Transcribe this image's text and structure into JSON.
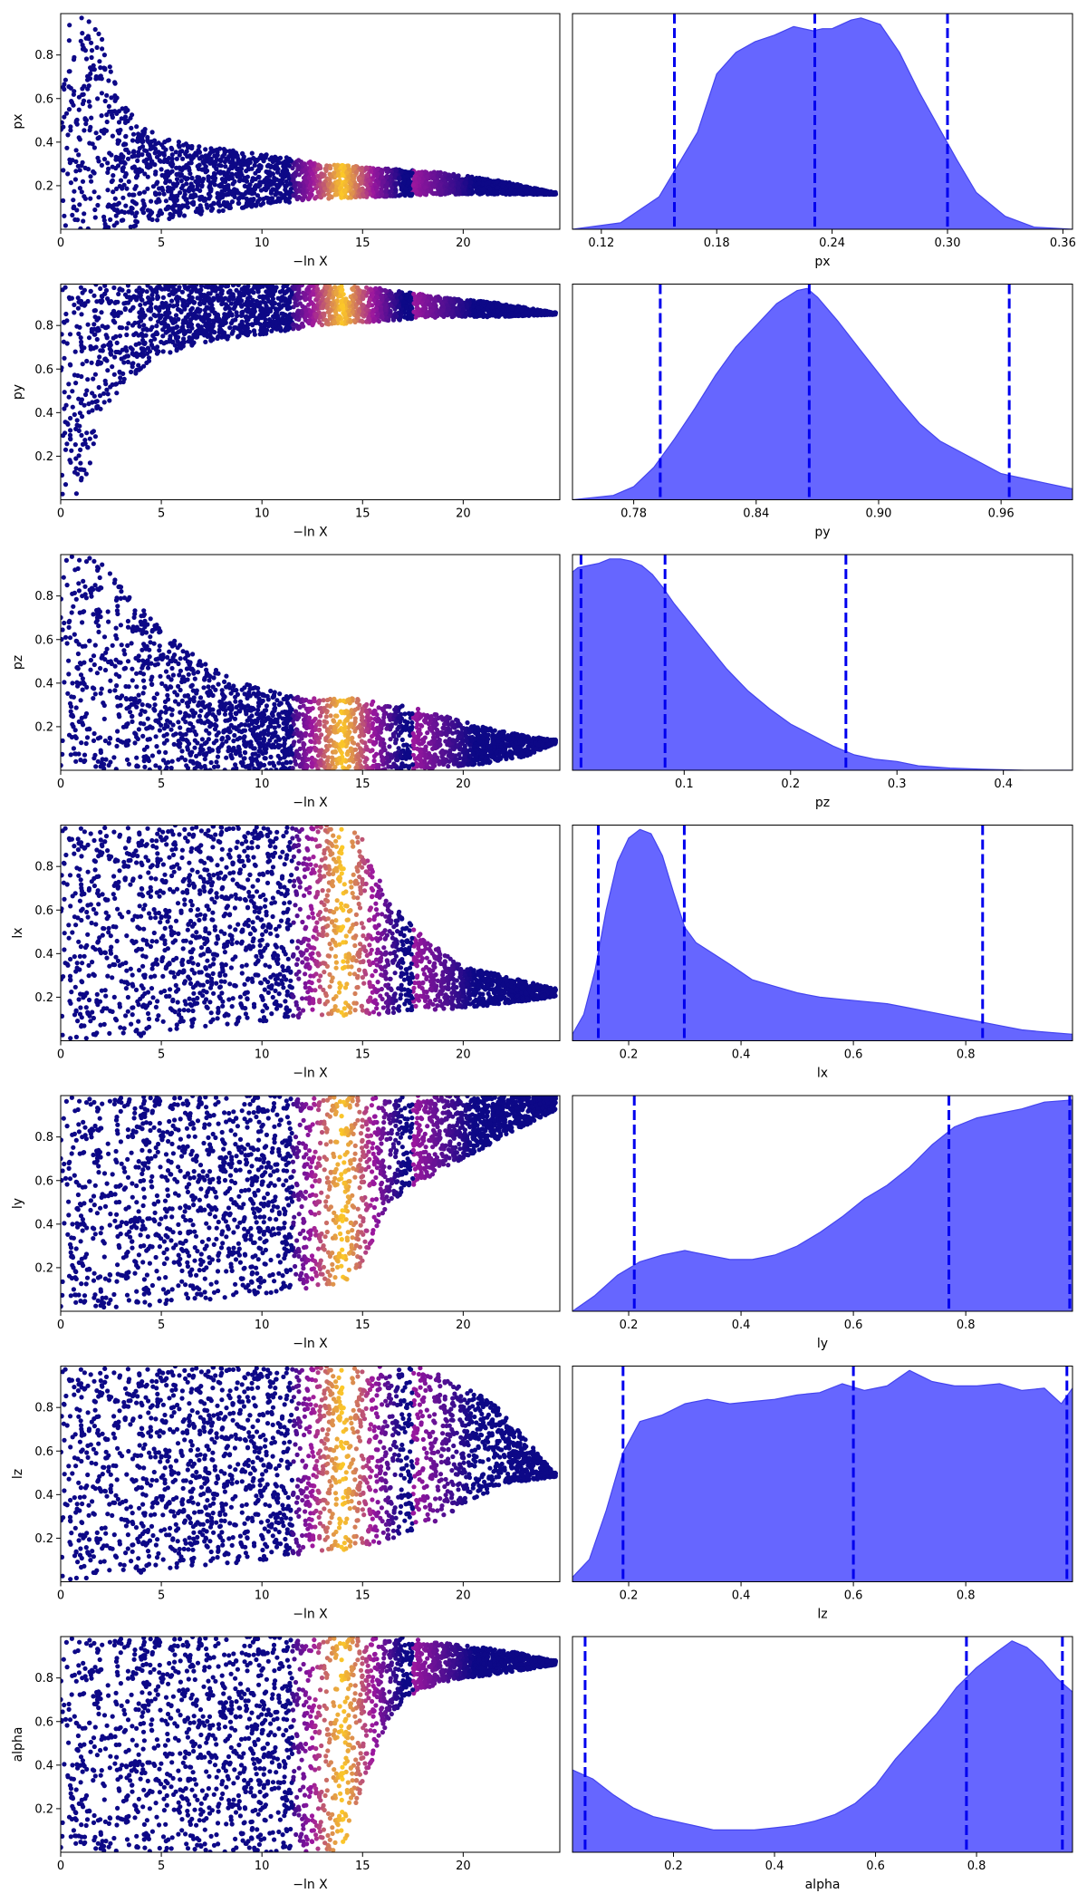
{
  "colors": {
    "trace_low": "#0d0887",
    "trace_mid": "#9c179e",
    "trace_high": "#fdca26",
    "posterior_fill": "#6666ff",
    "posterior_edge": "#4444ee",
    "quantile_line": "#0000ee"
  },
  "chart_data": [
    {
      "type": "scatter",
      "param": "px",
      "xlabel": "−ln X",
      "ylabel": "px",
      "xlim": [
        0,
        24.8
      ],
      "ylim": [
        0,
        0.99
      ],
      "xticks": [
        0,
        5,
        10,
        15,
        20
      ],
      "yticks": [
        0.2,
        0.4,
        0.6,
        0.8
      ],
      "envelope": {
        "x": [
          0,
          1,
          2,
          3,
          4,
          5,
          7,
          10,
          13,
          16,
          19,
          22,
          24.5
        ],
        "lo": [
          0,
          0,
          0,
          0,
          0.02,
          0.04,
          0.07,
          0.11,
          0.14,
          0.15,
          0.16,
          0.16,
          0.16
        ],
        "hi": [
          0.99,
          0.99,
          0.9,
          0.6,
          0.48,
          0.42,
          0.38,
          0.35,
          0.3,
          0.28,
          0.26,
          0.22,
          0.17
        ]
      },
      "bright_band": [
        11.5,
        17.5
      ],
      "peak": 14
    },
    {
      "type": "area",
      "param": "px",
      "xlabel": "px",
      "xlim": [
        0.105,
        0.365
      ],
      "xticks": [
        0.12,
        0.18,
        0.24,
        0.3,
        0.36
      ],
      "tick_labels": [
        "0.12",
        "0.18",
        "0.24",
        "0.30",
        "0.36"
      ],
      "quantiles": [
        0.158,
        0.231,
        0.3
      ],
      "x": [
        0.105,
        0.13,
        0.15,
        0.17,
        0.18,
        0.19,
        0.2,
        0.21,
        0.22,
        0.23,
        0.235,
        0.24,
        0.25,
        0.255,
        0.265,
        0.275,
        0.285,
        0.295,
        0.305,
        0.315,
        0.33,
        0.345,
        0.365
      ],
      "y": [
        0,
        0.03,
        0.15,
        0.45,
        0.72,
        0.82,
        0.87,
        0.9,
        0.94,
        0.92,
        0.93,
        0.93,
        0.97,
        0.98,
        0.95,
        0.82,
        0.64,
        0.48,
        0.32,
        0.17,
        0.06,
        0.01,
        0
      ]
    },
    {
      "type": "scatter",
      "param": "py",
      "xlabel": "−ln X",
      "ylabel": "py",
      "xlim": [
        0,
        24.8
      ],
      "ylim": [
        0,
        0.99
      ],
      "xticks": [
        0,
        5,
        10,
        15,
        20
      ],
      "yticks": [
        0.2,
        0.4,
        0.6,
        0.8
      ],
      "envelope": {
        "x": [
          0,
          0.5,
          1,
          1.5,
          2,
          3,
          4,
          5,
          7,
          10,
          13,
          16,
          19,
          22,
          24.5
        ],
        "lo": [
          0,
          0,
          0.02,
          0.18,
          0.38,
          0.52,
          0.6,
          0.66,
          0.72,
          0.76,
          0.8,
          0.82,
          0.84,
          0.84,
          0.85
        ],
        "hi": [
          0.99,
          0.99,
          0.99,
          0.99,
          0.99,
          0.99,
          0.99,
          0.99,
          0.99,
          0.99,
          0.99,
          0.97,
          0.93,
          0.9,
          0.86
        ]
      },
      "bright_band": [
        11.5,
        17.5
      ],
      "peak": 14
    },
    {
      "type": "area",
      "param": "py",
      "xlabel": "py",
      "xlim": [
        0.75,
        0.995
      ],
      "xticks": [
        0.78,
        0.84,
        0.9,
        0.96
      ],
      "tick_labels": [
        "0.78",
        "0.84",
        "0.90",
        "0.96"
      ],
      "quantiles": [
        0.793,
        0.866,
        0.964
      ],
      "x": [
        0.75,
        0.77,
        0.78,
        0.79,
        0.8,
        0.81,
        0.82,
        0.83,
        0.84,
        0.85,
        0.86,
        0.865,
        0.87,
        0.88,
        0.89,
        0.9,
        0.91,
        0.92,
        0.93,
        0.94,
        0.95,
        0.96,
        0.97,
        0.98,
        0.995
      ],
      "y": [
        0,
        0.02,
        0.06,
        0.15,
        0.28,
        0.42,
        0.57,
        0.7,
        0.8,
        0.9,
        0.96,
        0.97,
        0.93,
        0.82,
        0.7,
        0.58,
        0.46,
        0.35,
        0.27,
        0.22,
        0.17,
        0.12,
        0.1,
        0.08,
        0.05
      ]
    },
    {
      "type": "scatter",
      "param": "pz",
      "xlabel": "−ln X",
      "ylabel": "pz",
      "xlim": [
        0,
        24.8
      ],
      "ylim": [
        0,
        0.99
      ],
      "xticks": [
        0,
        5,
        10,
        15,
        20
      ],
      "yticks": [
        0.2,
        0.4,
        0.6,
        0.8
      ],
      "envelope": {
        "x": [
          0,
          1,
          2,
          3,
          5,
          7,
          9,
          11,
          13,
          15,
          17,
          19,
          21,
          23,
          24.5
        ],
        "lo": [
          0,
          0,
          0,
          0,
          0,
          0,
          0,
          0,
          0,
          0,
          0,
          0.01,
          0.03,
          0.06,
          0.12
        ],
        "hi": [
          0.99,
          0.99,
          0.99,
          0.85,
          0.65,
          0.5,
          0.4,
          0.35,
          0.33,
          0.33,
          0.3,
          0.25,
          0.2,
          0.16,
          0.14
        ]
      },
      "bright_band": [
        11.5,
        17.5
      ],
      "peak": 14
    },
    {
      "type": "area",
      "param": "pz",
      "xlabel": "pz",
      "xlim": [
        -0.005,
        0.465
      ],
      "xticks": [
        0.1,
        0.2,
        0.3,
        0.4
      ],
      "tick_labels": [
        "0.1",
        "0.2",
        "0.3",
        "0.4"
      ],
      "quantiles": [
        0.003,
        0.082,
        0.252
      ],
      "x": [
        -0.005,
        0.0,
        0.01,
        0.02,
        0.03,
        0.04,
        0.05,
        0.06,
        0.07,
        0.08,
        0.09,
        0.1,
        0.12,
        0.14,
        0.16,
        0.18,
        0.2,
        0.22,
        0.24,
        0.26,
        0.28,
        0.3,
        0.32,
        0.35,
        0.38,
        0.42,
        0.465
      ],
      "y": [
        0.9,
        0.92,
        0.93,
        0.94,
        0.96,
        0.96,
        0.95,
        0.93,
        0.89,
        0.83,
        0.76,
        0.7,
        0.58,
        0.46,
        0.36,
        0.28,
        0.21,
        0.16,
        0.11,
        0.07,
        0.05,
        0.04,
        0.02,
        0.01,
        0.005,
        0,
        0
      ]
    },
    {
      "type": "scatter",
      "param": "lx",
      "xlabel": "−ln X",
      "ylabel": "lx",
      "xlim": [
        0,
        24.8
      ],
      "ylim": [
        0,
        0.99
      ],
      "xticks": [
        0,
        5,
        10,
        15,
        20
      ],
      "yticks": [
        0.2,
        0.4,
        0.6,
        0.8
      ],
      "envelope": {
        "x": [
          0,
          1,
          2,
          4,
          6,
          8,
          10,
          12,
          14,
          15,
          16,
          17,
          18,
          20,
          22,
          24.5
        ],
        "lo": [
          0,
          0,
          0,
          0.02,
          0.05,
          0.07,
          0.09,
          0.1,
          0.11,
          0.12,
          0.12,
          0.13,
          0.14,
          0.15,
          0.17,
          0.2
        ],
        "hi": [
          0.99,
          0.99,
          0.99,
          0.99,
          0.99,
          0.99,
          0.99,
          0.99,
          0.99,
          0.95,
          0.7,
          0.58,
          0.48,
          0.34,
          0.3,
          0.24
        ]
      },
      "bright_band": [
        11.5,
        17.5
      ],
      "peak": 14
    },
    {
      "type": "area",
      "param": "lx",
      "xlabel": "lx",
      "xlim": [
        0.1,
        0.99
      ],
      "xticks": [
        0.2,
        0.4,
        0.6,
        0.8
      ],
      "tick_labels": [
        "0.2",
        "0.4",
        "0.6",
        "0.8"
      ],
      "quantiles": [
        0.146,
        0.299,
        0.83
      ],
      "x": [
        0.1,
        0.12,
        0.14,
        0.16,
        0.18,
        0.2,
        0.22,
        0.24,
        0.26,
        0.28,
        0.3,
        0.32,
        0.35,
        0.38,
        0.42,
        0.46,
        0.5,
        0.54,
        0.58,
        0.62,
        0.66,
        0.7,
        0.74,
        0.78,
        0.82,
        0.86,
        0.9,
        0.94,
        0.99
      ],
      "y": [
        0.03,
        0.12,
        0.32,
        0.6,
        0.82,
        0.93,
        0.97,
        0.95,
        0.85,
        0.68,
        0.52,
        0.45,
        0.4,
        0.35,
        0.28,
        0.25,
        0.22,
        0.2,
        0.19,
        0.18,
        0.17,
        0.15,
        0.13,
        0.11,
        0.09,
        0.07,
        0.05,
        0.04,
        0.03
      ]
    },
    {
      "type": "scatter",
      "param": "ly",
      "xlabel": "−ln X",
      "ylabel": "ly",
      "xlim": [
        0,
        24.8
      ],
      "ylim": [
        0,
        0.99
      ],
      "xticks": [
        0,
        5,
        10,
        15,
        20
      ],
      "yticks": [
        0.2,
        0.4,
        0.6,
        0.8
      ],
      "envelope": {
        "x": [
          0,
          1,
          2,
          4,
          6,
          8,
          10,
          12,
          14,
          15,
          16,
          17,
          18,
          19,
          20,
          22,
          24.5
        ],
        "lo": [
          0,
          0,
          0.01,
          0.02,
          0.04,
          0.06,
          0.08,
          0.1,
          0.12,
          0.2,
          0.45,
          0.55,
          0.6,
          0.65,
          0.7,
          0.8,
          0.92
        ],
        "hi": [
          0.99,
          0.99,
          0.99,
          0.99,
          0.99,
          0.99,
          0.99,
          0.99,
          0.99,
          0.99,
          0.99,
          0.99,
          0.99,
          0.99,
          0.99,
          0.99,
          0.99
        ]
      },
      "bright_band": [
        11.5,
        17.5
      ],
      "peak": 14
    },
    {
      "type": "area",
      "param": "ly",
      "xlabel": "ly",
      "xlim": [
        0.1,
        0.99
      ],
      "xticks": [
        0.2,
        0.4,
        0.6,
        0.8
      ],
      "tick_labels": [
        "0.2",
        "0.4",
        "0.6",
        "0.8"
      ],
      "quantiles": [
        0.21,
        0.77,
        0.985
      ],
      "x": [
        0.1,
        0.14,
        0.18,
        0.22,
        0.26,
        0.3,
        0.34,
        0.38,
        0.42,
        0.46,
        0.5,
        0.54,
        0.58,
        0.62,
        0.66,
        0.7,
        0.74,
        0.78,
        0.82,
        0.86,
        0.9,
        0.94,
        0.99
      ],
      "y": [
        0,
        0.07,
        0.16,
        0.22,
        0.25,
        0.27,
        0.25,
        0.23,
        0.23,
        0.25,
        0.29,
        0.35,
        0.42,
        0.5,
        0.56,
        0.64,
        0.74,
        0.82,
        0.86,
        0.88,
        0.9,
        0.93,
        0.94
      ]
    },
    {
      "type": "scatter",
      "param": "lz",
      "xlabel": "−ln X",
      "ylabel": "lz",
      "xlim": [
        0,
        24.8
      ],
      "ylim": [
        0,
        0.99
      ],
      "xticks": [
        0,
        5,
        10,
        15,
        20
      ],
      "yticks": [
        0.2,
        0.4,
        0.6,
        0.8
      ],
      "envelope": {
        "x": [
          0,
          1,
          2,
          4,
          6,
          8,
          10,
          12,
          14,
          16,
          18,
          19,
          20,
          21,
          22,
          24.5
        ],
        "lo": [
          0,
          0,
          0.02,
          0.04,
          0.06,
          0.08,
          0.1,
          0.12,
          0.14,
          0.18,
          0.24,
          0.3,
          0.35,
          0.4,
          0.45,
          0.48
        ],
        "hi": [
          0.99,
          0.99,
          0.99,
          0.99,
          0.99,
          0.99,
          0.99,
          0.99,
          0.99,
          0.99,
          0.99,
          0.95,
          0.9,
          0.85,
          0.78,
          0.5
        ]
      },
      "bright_band": [
        11.5,
        17.5
      ],
      "peak": 14
    },
    {
      "type": "area",
      "param": "lz",
      "xlabel": "lz",
      "xlim": [
        0.1,
        0.99
      ],
      "xticks": [
        0.2,
        0.4,
        0.6,
        0.8
      ],
      "tick_labels": [
        "0.2",
        "0.4",
        "0.6",
        "0.8"
      ],
      "quantiles": [
        0.19,
        0.6,
        0.98
      ],
      "x": [
        0.1,
        0.13,
        0.16,
        0.19,
        0.22,
        0.26,
        0.3,
        0.34,
        0.38,
        0.42,
        0.46,
        0.5,
        0.54,
        0.58,
        0.62,
        0.66,
        0.7,
        0.74,
        0.78,
        0.82,
        0.86,
        0.9,
        0.94,
        0.97,
        0.99
      ],
      "y": [
        0.02,
        0.1,
        0.32,
        0.58,
        0.72,
        0.75,
        0.8,
        0.82,
        0.8,
        0.81,
        0.82,
        0.84,
        0.85,
        0.89,
        0.86,
        0.88,
        0.95,
        0.9,
        0.88,
        0.88,
        0.89,
        0.86,
        0.87,
        0.8,
        0.87
      ]
    },
    {
      "type": "scatter",
      "param": "alpha",
      "xlabel": "−ln X",
      "ylabel": "alpha",
      "xlim": [
        0,
        24.8
      ],
      "ylim": [
        0,
        0.99
      ],
      "xticks": [
        0,
        5,
        10,
        15,
        20
      ],
      "yticks": [
        0.2,
        0.4,
        0.6,
        0.8
      ],
      "envelope": {
        "x": [
          0,
          1,
          2,
          4,
          6,
          8,
          10,
          12,
          14,
          15,
          16,
          17,
          18,
          20,
          22,
          24.5
        ],
        "lo": [
          0,
          0,
          0,
          0,
          0,
          0,
          0,
          0,
          0,
          0.3,
          0.55,
          0.7,
          0.75,
          0.8,
          0.82,
          0.86
        ],
        "hi": [
          0.99,
          0.99,
          0.99,
          0.99,
          0.99,
          0.99,
          0.99,
          0.99,
          0.99,
          0.99,
          0.99,
          0.99,
          0.97,
          0.95,
          0.93,
          0.88
        ]
      },
      "bright_band": [
        11.5,
        17.5
      ],
      "peak": 14
    },
    {
      "type": "area",
      "param": "alpha",
      "xlabel": "alpha",
      "xlim": [
        0.0,
        0.99
      ],
      "xticks": [
        0.2,
        0.4,
        0.6,
        0.8
      ],
      "tick_labels": [
        "0.2",
        "0.4",
        "0.6",
        "0.8"
      ],
      "quantiles": [
        0.025,
        0.78,
        0.97
      ],
      "x": [
        0.0,
        0.04,
        0.08,
        0.12,
        0.16,
        0.2,
        0.24,
        0.28,
        0.32,
        0.36,
        0.4,
        0.44,
        0.48,
        0.52,
        0.56,
        0.6,
        0.64,
        0.68,
        0.72,
        0.76,
        0.8,
        0.84,
        0.87,
        0.9,
        0.93,
        0.96,
        0.99
      ],
      "y": [
        0.37,
        0.33,
        0.26,
        0.2,
        0.16,
        0.14,
        0.12,
        0.1,
        0.1,
        0.1,
        0.11,
        0.12,
        0.14,
        0.17,
        0.22,
        0.3,
        0.42,
        0.52,
        0.62,
        0.74,
        0.83,
        0.9,
        0.95,
        0.92,
        0.86,
        0.78,
        0.72
      ]
    }
  ]
}
